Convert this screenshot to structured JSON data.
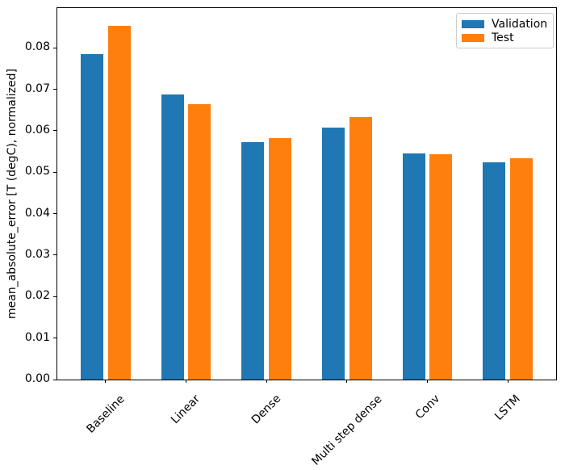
{
  "chart_data": {
    "type": "bar",
    "title": "",
    "xlabel": "",
    "ylabel": "mean_absolute_error [T (degC), normalized]",
    "categories": [
      "Baseline",
      "Linear",
      "Dense",
      "Multi step dense",
      "Conv",
      "LSTM"
    ],
    "series": [
      {
        "name": "Validation",
        "color": "#1f77b4",
        "values": [
          0.0785,
          0.0687,
          0.0572,
          0.0607,
          0.0545,
          0.0524
        ]
      },
      {
        "name": "Test",
        "color": "#ff7f0e",
        "values": [
          0.0853,
          0.0664,
          0.0583,
          0.0634,
          0.0543,
          0.0534
        ]
      }
    ],
    "ylim": [
      0,
      0.0896
    ],
    "xlim": [
      -0.6,
      5.6
    ],
    "yticks": [
      0.0,
      0.01,
      0.02,
      0.03,
      0.04,
      0.05,
      0.06,
      0.07,
      0.08
    ],
    "ytick_labels": [
      "0.00",
      "0.01",
      "0.02",
      "0.03",
      "0.04",
      "0.05",
      "0.06",
      "0.07",
      "0.08"
    ],
    "grid": false,
    "legend": {
      "position": "upper right",
      "entries": [
        "Validation",
        "Test"
      ]
    },
    "bar_width_fraction": 0.28,
    "group_offset_fraction": 0.17
  }
}
